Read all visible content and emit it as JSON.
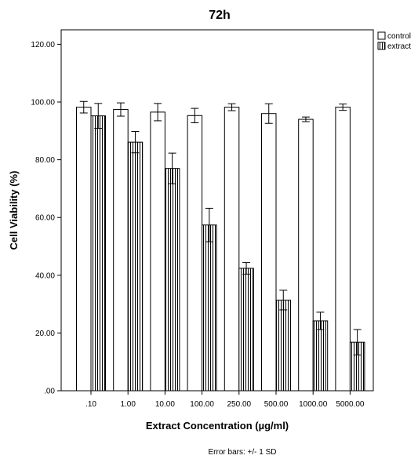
{
  "chart_data": {
    "type": "bar",
    "title": "72h",
    "xlabel": "Extract Concentration (µg/ml)",
    "ylabel": "Cell Viability (%)",
    "ylim": [
      0,
      125
    ],
    "yticks": [
      ".00",
      "20.00",
      "40.00",
      "60.00",
      "80.00",
      "100.00",
      "120.00"
    ],
    "categories": [
      ".10",
      "1.00",
      "10.00",
      "100.00",
      "250.00",
      "500.00",
      "1000.00",
      "5000.00"
    ],
    "series": [
      {
        "name": "control",
        "pattern": "solid",
        "values": [
          98.2,
          97.4,
          96.5,
          95.3,
          98.2,
          96.0,
          94.0,
          98.2
        ],
        "errors": [
          2.0,
          2.3,
          3.0,
          2.5,
          1.2,
          3.4,
          0.8,
          1.1
        ]
      },
      {
        "name": "extract",
        "pattern": "vertical-stripes",
        "values": [
          95.2,
          86.1,
          77.0,
          57.4,
          42.4,
          31.4,
          24.2,
          16.8
        ],
        "errors": [
          4.3,
          3.7,
          5.3,
          5.8,
          2.0,
          3.4,
          3.0,
          4.4
        ]
      }
    ],
    "legend_position": "top-right",
    "footnote": "Error bars: +/- 1 SD",
    "colors": {
      "bar_fill": "#ffffff",
      "stroke": "#000000",
      "stripe": "#000000"
    }
  }
}
